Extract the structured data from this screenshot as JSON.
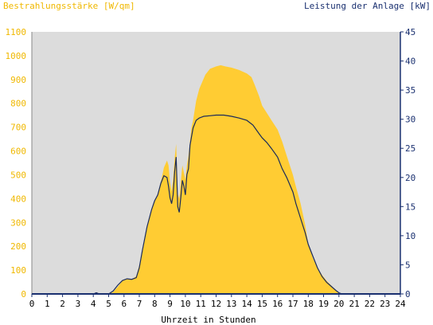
{
  "chart_data": {
    "type": "area",
    "left_axis_title": "Bestrahlungsstärke [W/qm]",
    "right_axis_title": "Leistung der Anlage [kW]",
    "xlabel": "Uhrzeit in Stunden",
    "xlim": [
      0,
      24
    ],
    "x_ticks": [
      "0",
      "1",
      "2",
      "3",
      "4",
      "5",
      "6",
      "7",
      "8",
      "9",
      "10",
      "11",
      "12",
      "13",
      "14",
      "15",
      "16",
      "17",
      "18",
      "19",
      "20",
      "21",
      "22",
      "23",
      "24"
    ],
    "ylim_left": [
      0,
      1100
    ],
    "y_ticks_left": [
      "0",
      "100",
      "200",
      "300",
      "400",
      "500",
      "600",
      "700",
      "800",
      "900",
      "1000",
      "1100"
    ],
    "ylim_right": [
      0,
      45
    ],
    "y_ticks_right": [
      "0",
      "5",
      "10",
      "15",
      "20",
      "25",
      "30",
      "35",
      "40",
      "45"
    ],
    "grid": false,
    "background_color": "#dcdcdc",
    "series": [
      {
        "name": "Bestrahlungsstärke",
        "axis": "left",
        "style": "area",
        "color": "#ffcc33",
        "x": [
          0,
          5.0,
          5.3,
          5.6,
          5.9,
          6.2,
          6.5,
          6.8,
          7.0,
          7.2,
          7.5,
          7.8,
          8.0,
          8.2,
          8.4,
          8.6,
          8.8,
          8.9,
          9.0,
          9.1,
          9.2,
          9.3,
          9.4,
          9.5,
          9.6,
          9.7,
          9.8,
          9.9,
          10.0,
          10.1,
          10.2,
          10.3,
          10.4,
          10.5,
          10.7,
          10.9,
          11.1,
          11.3,
          11.6,
          12.0,
          12.3,
          12.6,
          13.0,
          13.5,
          14.0,
          14.3,
          14.5,
          14.8,
          15.0,
          15.3,
          15.6,
          16.0,
          16.3,
          16.6,
          17.0,
          17.2,
          17.5,
          17.8,
          18.0,
          18.3,
          18.6,
          18.9,
          19.2,
          19.5,
          19.8,
          20.0,
          20.2,
          20.4,
          21.0,
          24.0
        ],
        "values": [
          0,
          0,
          8,
          30,
          55,
          62,
          60,
          75,
          120,
          180,
          280,
          350,
          390,
          420,
          470,
          530,
          560,
          540,
          470,
          430,
          480,
          570,
          630,
          420,
          400,
          470,
          540,
          510,
          480,
          540,
          580,
          640,
          700,
          730,
          810,
          860,
          890,
          920,
          945,
          955,
          960,
          955,
          950,
          940,
          925,
          910,
          880,
          830,
          790,
          760,
          730,
          690,
          640,
          580,
          500,
          450,
          380,
          290,
          210,
          150,
          110,
          80,
          55,
          35,
          15,
          5,
          0,
          0,
          0,
          0
        ]
      },
      {
        "name": "Leistung der Anlage",
        "axis": "right",
        "style": "line",
        "color": "#1a2a5a",
        "x": [
          0,
          4.0,
          4.2,
          4.4,
          5.0,
          5.3,
          5.6,
          5.9,
          6.2,
          6.5,
          6.8,
          7.0,
          7.2,
          7.5,
          7.8,
          8.0,
          8.2,
          8.4,
          8.6,
          8.8,
          8.9,
          9.0,
          9.1,
          9.2,
          9.3,
          9.4,
          9.5,
          9.6,
          9.7,
          9.8,
          9.9,
          10.0,
          10.1,
          10.2,
          10.3,
          10.4,
          10.5,
          10.7,
          10.9,
          11.2,
          11.6,
          12.0,
          12.5,
          13.0,
          13.5,
          14.0,
          14.4,
          14.8,
          15.0,
          15.3,
          15.6,
          16.0,
          16.3,
          16.6,
          17.0,
          17.2,
          17.5,
          17.8,
          18.0,
          18.3,
          18.6,
          18.9,
          19.2,
          19.5,
          19.8,
          20.0,
          20.2,
          20.4,
          21.0,
          24.0
        ],
        "values": [
          0,
          0,
          0.2,
          0,
          0,
          0.5,
          1.5,
          2.3,
          2.6,
          2.5,
          2.8,
          4.5,
          7.5,
          11.5,
          14.5,
          16.0,
          17.0,
          19.0,
          20.3,
          20.0,
          18.5,
          16.5,
          15.5,
          17.0,
          21.0,
          23.5,
          15.0,
          14.0,
          16.5,
          19.5,
          18.5,
          17.0,
          20.5,
          21.5,
          25.5,
          27.0,
          28.5,
          29.8,
          30.2,
          30.5,
          30.6,
          30.7,
          30.7,
          30.5,
          30.2,
          29.8,
          29.0,
          27.5,
          26.8,
          26.0,
          25.0,
          23.5,
          21.5,
          20.0,
          17.5,
          15.5,
          13.0,
          10.5,
          8.5,
          6.5,
          4.5,
          3.0,
          2.0,
          1.3,
          0.6,
          0.2,
          0,
          0,
          0,
          0
        ]
      }
    ]
  }
}
